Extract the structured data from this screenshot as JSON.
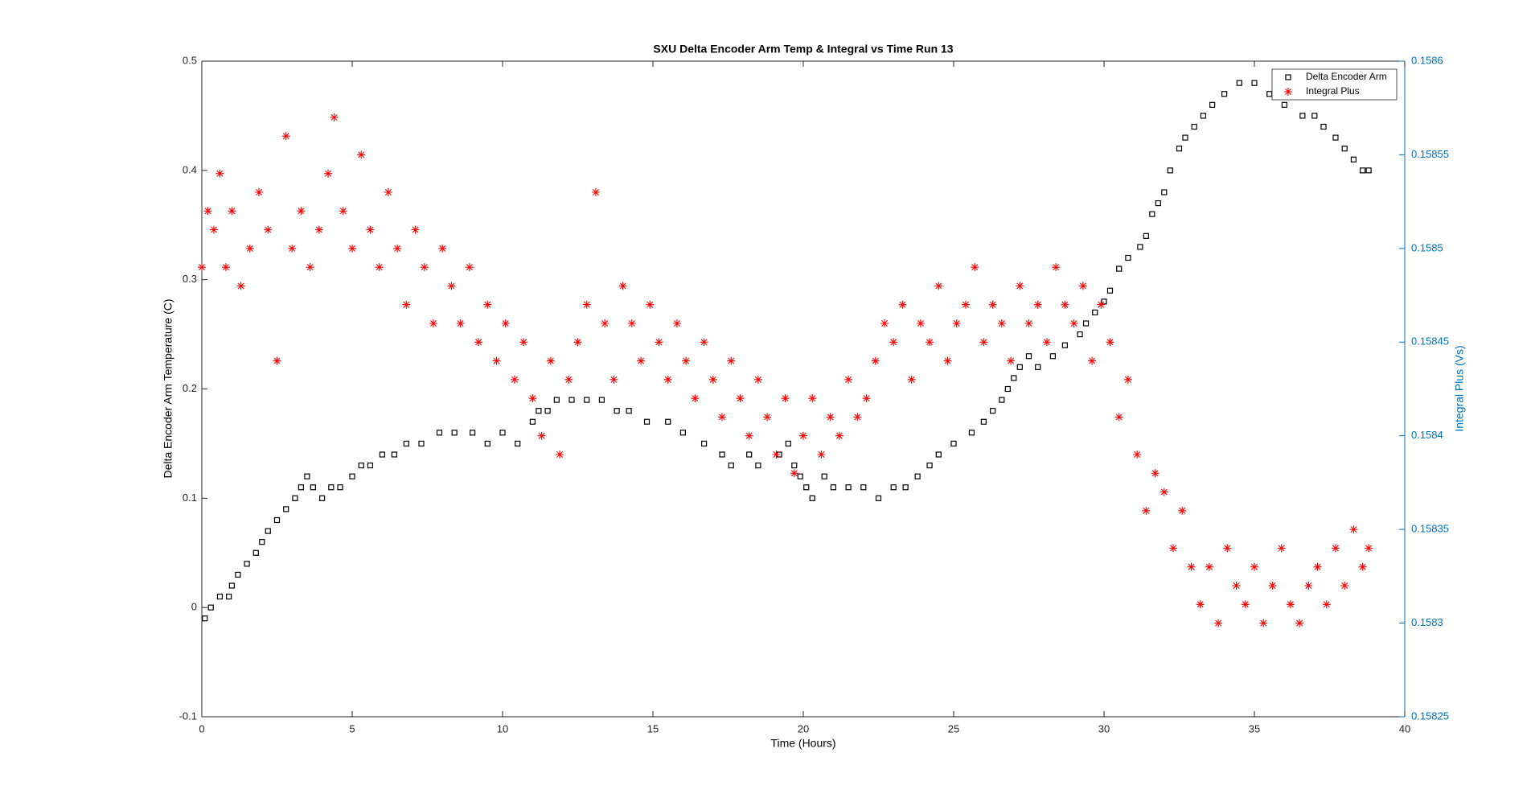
{
  "chart_data": {
    "type": "scatter",
    "title": "SXU Delta Encoder Arm Temp & Integral vs Time Run 13",
    "x_label": "Time (Hours)",
    "y_label": "Delta Encoder Arm Temperature (C)",
    "y2_label": "Integral Plus (Vs)",
    "xlim": [
      0,
      40
    ],
    "xticks": [
      0,
      5,
      10,
      15,
      20,
      25,
      30,
      35,
      40
    ],
    "ylim": [
      -0.1,
      0.5
    ],
    "yticks": [
      -0.1,
      0,
      0.1,
      0.2,
      0.3,
      0.4,
      0.5
    ],
    "y2lim": [
      0.15825,
      0.1586
    ],
    "y2ticks": [
      0.15825,
      0.1583,
      0.15835,
      0.1584,
      0.15845,
      0.1585,
      0.15855,
      0.1586
    ],
    "y2_color": "#0072bd",
    "grid": false,
    "legend": "northeast",
    "series": [
      {
        "name": "Delta Encoder Arm",
        "color": "#000000",
        "marker": "square",
        "x": [
          0.1,
          0.3,
          0.6,
          0.9,
          1.0,
          1.2,
          1.5,
          1.8,
          2.0,
          2.2,
          2.5,
          2.8,
          3.1,
          3.3,
          3.5,
          3.7,
          4.0,
          4.3,
          4.6,
          5.0,
          5.3,
          5.6,
          6.0,
          6.4,
          6.8,
          7.3,
          7.9,
          8.4,
          9.0,
          9.5,
          10.0,
          10.5,
          11.0,
          11.2,
          11.5,
          11.8,
          12.3,
          12.8,
          13.3,
          13.8,
          14.2,
          14.8,
          15.5,
          16.0,
          16.7,
          17.3,
          17.6,
          18.2,
          18.5,
          19.2,
          19.5,
          19.7,
          19.9,
          20.1,
          20.3,
          20.7,
          21.0,
          21.5,
          22.0,
          22.5,
          23.0,
          23.4,
          23.8,
          24.2,
          24.5,
          25.0,
          25.6,
          26.0,
          26.3,
          26.6,
          26.8,
          27.0,
          27.2,
          27.5,
          27.8,
          28.3,
          28.7,
          29.2,
          29.4,
          29.7,
          30.0,
          30.2,
          30.5,
          30.8,
          31.2,
          31.4,
          31.6,
          31.8,
          32.0,
          32.2,
          32.5,
          32.7,
          33.0,
          33.3,
          33.6,
          34.0,
          34.5,
          35.0,
          35.5,
          36.0,
          36.4,
          36.6,
          37.0,
          37.3,
          37.7,
          38.0,
          38.3,
          38.6,
          38.8
        ],
        "values": [
          -0.01,
          0,
          0.01,
          0.01,
          0.02,
          0.03,
          0.04,
          0.05,
          0.06,
          0.07,
          0.08,
          0.09,
          0.1,
          0.11,
          0.12,
          0.11,
          0.1,
          0.11,
          0.11,
          0.12,
          0.13,
          0.13,
          0.14,
          0.14,
          0.15,
          0.15,
          0.16,
          0.16,
          0.16,
          0.15,
          0.16,
          0.15,
          0.17,
          0.18,
          0.18,
          0.19,
          0.19,
          0.19,
          0.19,
          0.18,
          0.18,
          0.17,
          0.17,
          0.16,
          0.15,
          0.14,
          0.13,
          0.14,
          0.13,
          0.14,
          0.15,
          0.13,
          0.12,
          0.11,
          0.1,
          0.12,
          0.11,
          0.11,
          0.11,
          0.1,
          0.11,
          0.11,
          0.12,
          0.13,
          0.14,
          0.15,
          0.16,
          0.17,
          0.18,
          0.19,
          0.2,
          0.21,
          0.22,
          0.23,
          0.22,
          0.23,
          0.24,
          0.25,
          0.26,
          0.27,
          0.28,
          0.29,
          0.31,
          0.32,
          0.33,
          0.34,
          0.36,
          0.37,
          0.38,
          0.4,
          0.42,
          0.43,
          0.44,
          0.45,
          0.46,
          0.47,
          0.48,
          0.48,
          0.47,
          0.46,
          0.47,
          0.45,
          0.45,
          0.44,
          0.43,
          0.42,
          0.41,
          0.4,
          0.4
        ]
      },
      {
        "name": "Integral Plus",
        "color": "#ff0000",
        "marker": "asterisk",
        "axis": "y2",
        "x": [
          0,
          0.2,
          0.4,
          0.6,
          0.8,
          1.0,
          1.3,
          1.6,
          1.9,
          2.2,
          2.5,
          2.8,
          3.0,
          3.3,
          3.6,
          3.9,
          4.2,
          4.4,
          4.7,
          5.0,
          5.3,
          5.6,
          5.9,
          6.2,
          6.5,
          6.8,
          7.1,
          7.4,
          7.7,
          8.0,
          8.3,
          8.6,
          8.9,
          9.2,
          9.5,
          9.8,
          10.1,
          10.4,
          10.7,
          11.0,
          11.3,
          11.6,
          11.9,
          12.2,
          12.5,
          12.8,
          13.1,
          13.4,
          13.7,
          14.0,
          14.3,
          14.6,
          14.9,
          15.2,
          15.5,
          15.8,
          16.1,
          16.4,
          16.7,
          17.0,
          17.3,
          17.6,
          17.9,
          18.2,
          18.5,
          18.8,
          19.1,
          19.4,
          19.7,
          20.0,
          20.3,
          20.6,
          20.9,
          21.2,
          21.5,
          21.8,
          22.1,
          22.4,
          22.7,
          23.0,
          23.3,
          23.6,
          23.9,
          24.2,
          24.5,
          24.8,
          25.1,
          25.4,
          25.7,
          26.0,
          26.3,
          26.6,
          26.9,
          27.2,
          27.5,
          27.8,
          28.1,
          28.4,
          28.7,
          29.0,
          29.3,
          29.6,
          29.9,
          30.2,
          30.5,
          30.8,
          31.1,
          31.4,
          31.7,
          32.0,
          32.3,
          32.6,
          32.9,
          33.2,
          33.5,
          33.8,
          34.1,
          34.4,
          34.7,
          35.0,
          35.3,
          35.6,
          35.9,
          36.2,
          36.5,
          36.8,
          37.1,
          37.4,
          37.7,
          38.0,
          38.3,
          38.6,
          38.8
        ],
        "values": [
          0.15849,
          0.15852,
          0.15851,
          0.15854,
          0.15849,
          0.15852,
          0.15848,
          0.1585,
          0.15853,
          0.15851,
          0.15844,
          0.15856,
          0.1585,
          0.15852,
          0.15849,
          0.15851,
          0.15854,
          0.15857,
          0.15852,
          0.1585,
          0.15855,
          0.15851,
          0.15849,
          0.15853,
          0.1585,
          0.15847,
          0.15851,
          0.15849,
          0.15846,
          0.1585,
          0.15848,
          0.15846,
          0.15849,
          0.15845,
          0.15847,
          0.15844,
          0.15846,
          0.15843,
          0.15845,
          0.15842,
          0.1584,
          0.15844,
          0.15839,
          0.15843,
          0.15845,
          0.15847,
          0.15853,
          0.15846,
          0.15843,
          0.15848,
          0.15846,
          0.15844,
          0.15847,
          0.15845,
          0.15843,
          0.15846,
          0.15844,
          0.15842,
          0.15845,
          0.15843,
          0.15841,
          0.15844,
          0.15842,
          0.1584,
          0.15843,
          0.15841,
          0.15839,
          0.15842,
          0.15838,
          0.1584,
          0.15842,
          0.15839,
          0.15841,
          0.1584,
          0.15843,
          0.15841,
          0.15842,
          0.15844,
          0.15846,
          0.15845,
          0.15847,
          0.15843,
          0.15846,
          0.15845,
          0.15848,
          0.15844,
          0.15846,
          0.15847,
          0.15849,
          0.15845,
          0.15847,
          0.15846,
          0.15844,
          0.15848,
          0.15846,
          0.15847,
          0.15845,
          0.15849,
          0.15847,
          0.15846,
          0.15848,
          0.15844,
          0.15847,
          0.15845,
          0.15841,
          0.15843,
          0.15839,
          0.15836,
          0.15838,
          0.15837,
          0.15834,
          0.15836,
          0.15833,
          0.15831,
          0.15833,
          0.1583,
          0.15834,
          0.15832,
          0.15831,
          0.15833,
          0.1583,
          0.15832,
          0.15834,
          0.15831,
          0.1583,
          0.15832,
          0.15833,
          0.15831,
          0.15834,
          0.15832,
          0.15835,
          0.15833,
          0.15834
        ]
      }
    ]
  }
}
